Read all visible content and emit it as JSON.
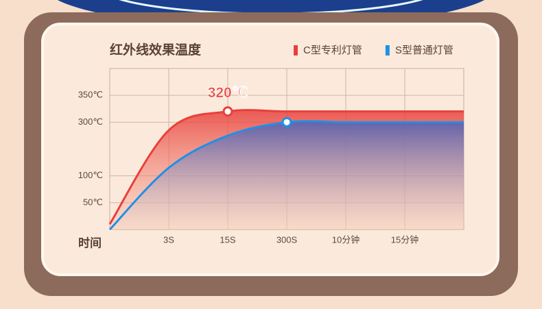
{
  "chart_data": {
    "type": "line",
    "title": "红外线效果温度",
    "x_label": "时间",
    "categories": [
      null,
      "3S",
      "15S",
      "300S",
      "10分钟",
      "15分钟",
      null
    ],
    "series": [
      {
        "name": "C型专利灯管",
        "color": "#e8403c",
        "values": [
          10,
          270,
          320,
          320,
          320,
          320,
          320
        ]
      },
      {
        "name": "S型普通灯管",
        "color": "#1e90e8",
        "values": [
          0,
          130,
          250,
          300,
          300,
          300,
          300
        ]
      }
    ],
    "annotation": "320℃",
    "ylim": [
      0,
      400
    ],
    "yticks": [
      {
        "value": 50,
        "label": "50℃"
      },
      {
        "value": 100,
        "label": "100℃"
      },
      {
        "value": 300,
        "label": "300℃"
      },
      {
        "value": 350,
        "label": "350℃"
      }
    ],
    "grid": true,
    "legend": "top-right"
  }
}
